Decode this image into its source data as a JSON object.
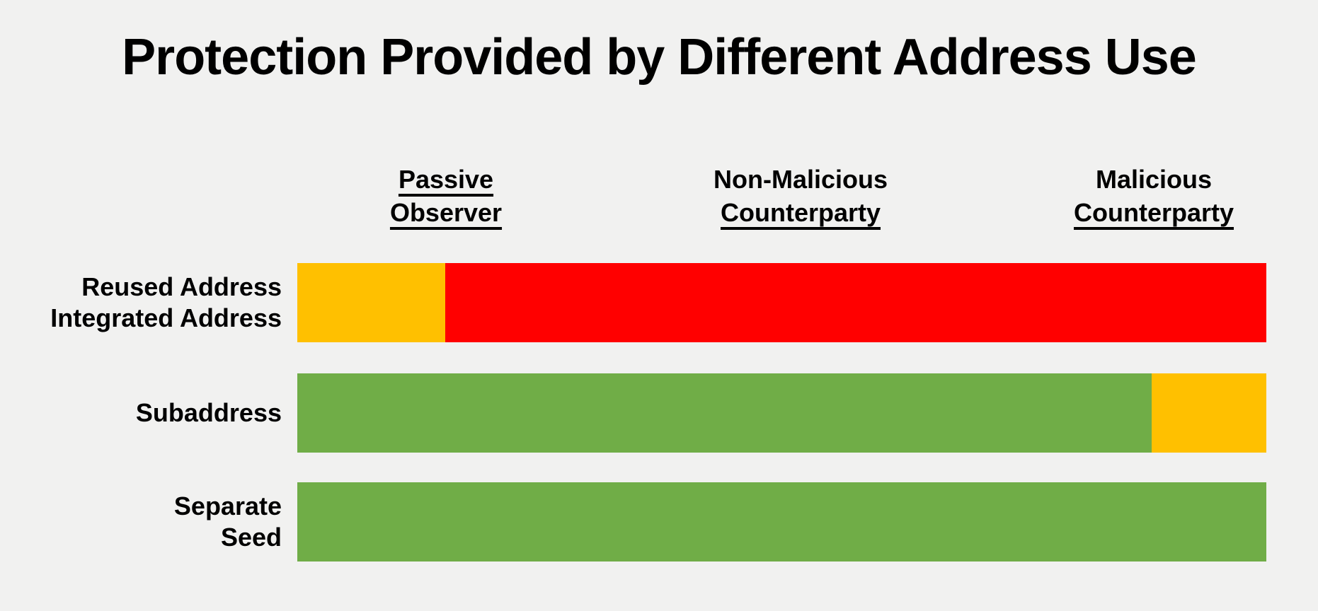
{
  "slide": {
    "title": "Protection Provided by Different Address Use",
    "background_color": "#F1F1F0",
    "text_color": "#000000"
  },
  "columns": [
    {
      "lines": [
        "Passive",
        "Observer"
      ],
      "underline": [
        true,
        true
      ]
    },
    {
      "lines": [
        "Non-Malicious",
        "Counterparty"
      ],
      "underline": [
        false,
        true
      ]
    },
    {
      "lines": [
        "Malicious",
        "Counterparty"
      ],
      "underline": [
        false,
        true
      ]
    }
  ],
  "chart_data": {
    "type": "bar",
    "orientation": "horizontal-stacked-qualitative",
    "title": "Protection Provided by Different Address Use",
    "column_headers": [
      "Passive Observer",
      "Non-Malicious Counterparty",
      "Malicious Counterparty"
    ],
    "colors": {
      "gold": "#FFC000",
      "red": "#FF0000",
      "green": "#70AD47"
    },
    "legend_position": "none",
    "grid": false,
    "rows": [
      {
        "key": "reused-integrated",
        "label": "Reused Address\nIntegrated Address",
        "segments": [
          {
            "color": "gold",
            "width_pct": 15.3,
            "spans_columns": [
              "Passive Observer"
            ]
          },
          {
            "color": "red",
            "width_pct": 84.7,
            "spans_columns": [
              "Non-Malicious Counterparty",
              "Malicious Counterparty"
            ]
          }
        ]
      },
      {
        "key": "subaddress",
        "label": "Subaddress",
        "segments": [
          {
            "color": "green",
            "width_pct": 88.2,
            "spans_columns": [
              "Passive Observer",
              "Non-Malicious Counterparty"
            ]
          },
          {
            "color": "gold",
            "width_pct": 11.8,
            "spans_columns": [
              "Malicious Counterparty"
            ]
          }
        ]
      },
      {
        "key": "separate-seed",
        "label": "Separate\nSeed",
        "segments": [
          {
            "color": "green",
            "width_pct": 100,
            "spans_columns": [
              "Passive Observer",
              "Non-Malicious Counterparty",
              "Malicious Counterparty"
            ]
          }
        ]
      }
    ]
  }
}
